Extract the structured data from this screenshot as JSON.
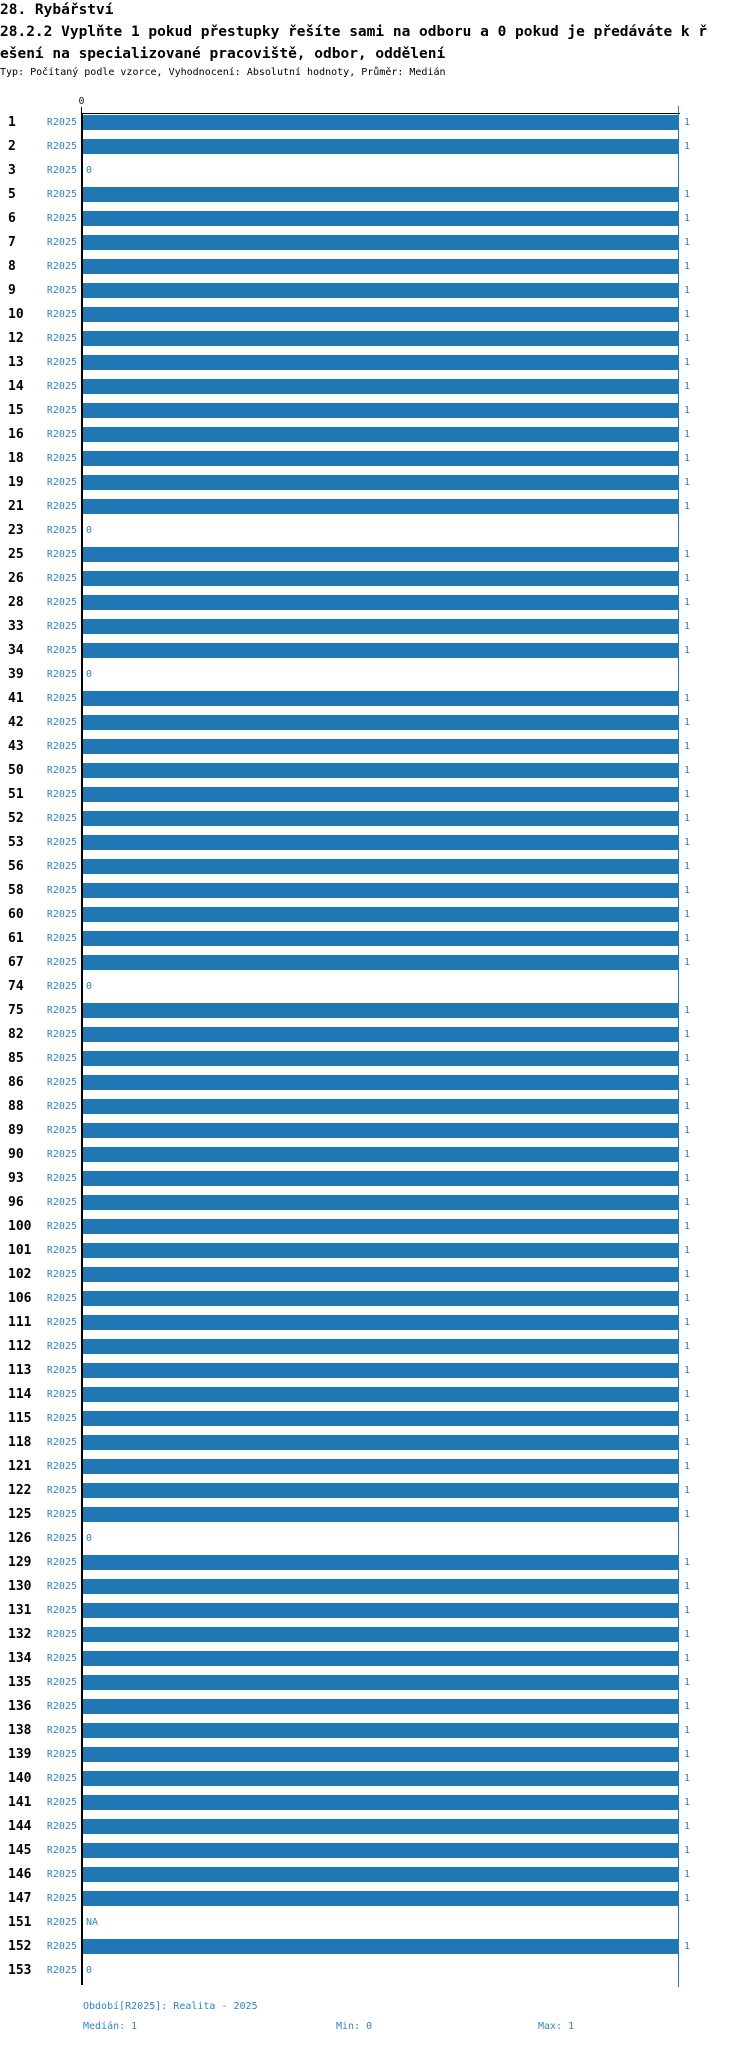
{
  "header": {
    "title": "28. Rybářství",
    "question_line1": "28.2.2 Vyplňte 1 pokud přestupky řešíte sami na odboru a 0 pokud je předáváte k ř",
    "question_line2": "ešení na specializované pracoviště, odbor, oddělení",
    "meta": "Typ: Počítaný podle vzorce, Vyhodnocení: Absolutní hodnoty, Průměr: Medián"
  },
  "chart_data": {
    "type": "bar",
    "orientation": "horizontal",
    "series_name": "R2025",
    "xlim": [
      0,
      1
    ],
    "top_axis_tick_label": "0",
    "bar_color": "#1f77b4",
    "label_color": "#2e86c4",
    "grid_on": false,
    "rows": [
      {
        "category": "1",
        "value": 1,
        "label": "1"
      },
      {
        "category": "2",
        "value": 1,
        "label": "1"
      },
      {
        "category": "3",
        "value": 0,
        "label": "0"
      },
      {
        "category": "5",
        "value": 1,
        "label": "1"
      },
      {
        "category": "6",
        "value": 1,
        "label": "1"
      },
      {
        "category": "7",
        "value": 1,
        "label": "1"
      },
      {
        "category": "8",
        "value": 1,
        "label": "1"
      },
      {
        "category": "9",
        "value": 1,
        "label": "1"
      },
      {
        "category": "10",
        "value": 1,
        "label": "1"
      },
      {
        "category": "12",
        "value": 1,
        "label": "1"
      },
      {
        "category": "13",
        "value": 1,
        "label": "1"
      },
      {
        "category": "14",
        "value": 1,
        "label": "1"
      },
      {
        "category": "15",
        "value": 1,
        "label": "1"
      },
      {
        "category": "16",
        "value": 1,
        "label": "1"
      },
      {
        "category": "18",
        "value": 1,
        "label": "1"
      },
      {
        "category": "19",
        "value": 1,
        "label": "1"
      },
      {
        "category": "21",
        "value": 1,
        "label": "1"
      },
      {
        "category": "23",
        "value": 0,
        "label": "0"
      },
      {
        "category": "25",
        "value": 1,
        "label": "1"
      },
      {
        "category": "26",
        "value": 1,
        "label": "1"
      },
      {
        "category": "28",
        "value": 1,
        "label": "1"
      },
      {
        "category": "33",
        "value": 1,
        "label": "1"
      },
      {
        "category": "34",
        "value": 1,
        "label": "1"
      },
      {
        "category": "39",
        "value": 0,
        "label": "0"
      },
      {
        "category": "41",
        "value": 1,
        "label": "1"
      },
      {
        "category": "42",
        "value": 1,
        "label": "1"
      },
      {
        "category": "43",
        "value": 1,
        "label": "1"
      },
      {
        "category": "50",
        "value": 1,
        "label": "1"
      },
      {
        "category": "51",
        "value": 1,
        "label": "1"
      },
      {
        "category": "52",
        "value": 1,
        "label": "1"
      },
      {
        "category": "53",
        "value": 1,
        "label": "1"
      },
      {
        "category": "56",
        "value": 1,
        "label": "1"
      },
      {
        "category": "58",
        "value": 1,
        "label": "1"
      },
      {
        "category": "60",
        "value": 1,
        "label": "1"
      },
      {
        "category": "61",
        "value": 1,
        "label": "1"
      },
      {
        "category": "67",
        "value": 1,
        "label": "1"
      },
      {
        "category": "74",
        "value": 0,
        "label": "0"
      },
      {
        "category": "75",
        "value": 1,
        "label": "1"
      },
      {
        "category": "82",
        "value": 1,
        "label": "1"
      },
      {
        "category": "85",
        "value": 1,
        "label": "1"
      },
      {
        "category": "86",
        "value": 1,
        "label": "1"
      },
      {
        "category": "88",
        "value": 1,
        "label": "1"
      },
      {
        "category": "89",
        "value": 1,
        "label": "1"
      },
      {
        "category": "90",
        "value": 1,
        "label": "1"
      },
      {
        "category": "93",
        "value": 1,
        "label": "1"
      },
      {
        "category": "96",
        "value": 1,
        "label": "1"
      },
      {
        "category": "100",
        "value": 1,
        "label": "1"
      },
      {
        "category": "101",
        "value": 1,
        "label": "1"
      },
      {
        "category": "102",
        "value": 1,
        "label": "1"
      },
      {
        "category": "106",
        "value": 1,
        "label": "1"
      },
      {
        "category": "111",
        "value": 1,
        "label": "1"
      },
      {
        "category": "112",
        "value": 1,
        "label": "1"
      },
      {
        "category": "113",
        "value": 1,
        "label": "1"
      },
      {
        "category": "114",
        "value": 1,
        "label": "1"
      },
      {
        "category": "115",
        "value": 1,
        "label": "1"
      },
      {
        "category": "118",
        "value": 1,
        "label": "1"
      },
      {
        "category": "121",
        "value": 1,
        "label": "1"
      },
      {
        "category": "122",
        "value": 1,
        "label": "1"
      },
      {
        "category": "125",
        "value": 1,
        "label": "1"
      },
      {
        "category": "126",
        "value": 0,
        "label": "0"
      },
      {
        "category": "129",
        "value": 1,
        "label": "1"
      },
      {
        "category": "130",
        "value": 1,
        "label": "1"
      },
      {
        "category": "131",
        "value": 1,
        "label": "1"
      },
      {
        "category": "132",
        "value": 1,
        "label": "1"
      },
      {
        "category": "134",
        "value": 1,
        "label": "1"
      },
      {
        "category": "135",
        "value": 1,
        "label": "1"
      },
      {
        "category": "136",
        "value": 1,
        "label": "1"
      },
      {
        "category": "138",
        "value": 1,
        "label": "1"
      },
      {
        "category": "139",
        "value": 1,
        "label": "1"
      },
      {
        "category": "140",
        "value": 1,
        "label": "1"
      },
      {
        "category": "141",
        "value": 1,
        "label": "1"
      },
      {
        "category": "144",
        "value": 1,
        "label": "1"
      },
      {
        "category": "145",
        "value": 1,
        "label": "1"
      },
      {
        "category": "146",
        "value": 1,
        "label": "1"
      },
      {
        "category": "147",
        "value": 1,
        "label": "1"
      },
      {
        "category": "151",
        "value": null,
        "label": "NA"
      },
      {
        "category": "152",
        "value": 1,
        "label": "1"
      },
      {
        "category": "153",
        "value": 0,
        "label": "0"
      }
    ]
  },
  "footer": {
    "period": "Období[R2025]: Realita - 2025",
    "median": "Medián: 1",
    "min": "Min: 0",
    "max": "Max: 1"
  }
}
